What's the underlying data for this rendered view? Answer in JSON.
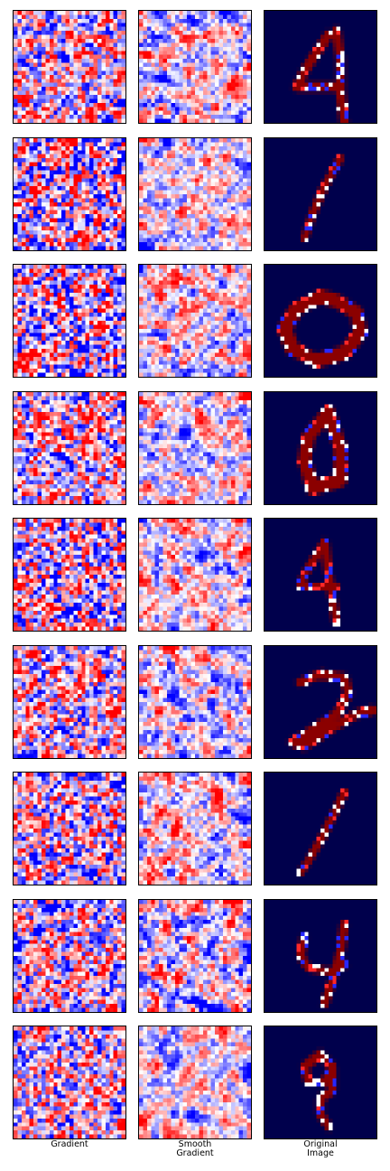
{
  "figure": {
    "columns": [
      {
        "key": "gradient",
        "label": "Gradient",
        "colormap": "bwr"
      },
      {
        "key": "smooth_gradient",
        "label": "Smooth\nGradient",
        "colormap": "bwr"
      },
      {
        "key": "original",
        "label": "Original\nImage",
        "colormap": "seismic"
      }
    ],
    "rows": [
      {
        "digit": "4"
      },
      {
        "digit": "1"
      },
      {
        "digit": "0"
      },
      {
        "digit": "0"
      },
      {
        "digit": "4"
      },
      {
        "digit": "2"
      },
      {
        "digit": "1"
      },
      {
        "digit": "4"
      },
      {
        "digit": "9"
      }
    ],
    "colors": {
      "map_blue": "#0000ff",
      "map_red": "#ff0000",
      "map_white": "#ffffff",
      "background_navy": "#00004c",
      "stroke_darkred": "#8b0000"
    }
  }
}
